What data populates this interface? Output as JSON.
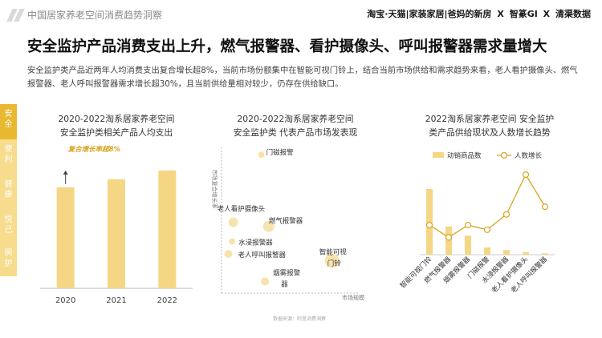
{
  "header": {
    "report_title": "中国居家养老空间消费趋势洞察",
    "brand_1": "淘宝·天猫",
    "brand_2": "家装家居",
    "brand_3": "爸妈的新房",
    "brand_4": "智篆GI",
    "brand_5": "清渠数据",
    "separator": "X"
  },
  "headline": "安全监护产品消费支出上升，燃气报警器、看护摄像头、呼叫报警器需求量增大",
  "intro": "安全监护类产品近两年人均消费支出复合增长超8%，当前市场份额集中在智能可视门铃上，结合当前市场供给和需求趋势来看，老人看护摄像头、燃气报警器、老人呼叫报警器需求增长超30%，且当前供给量相对较少，仍存在供给缺口。",
  "sidebar": {
    "items": [
      "安全",
      "便利",
      "健康",
      "悦己",
      "照护"
    ]
  },
  "colors": {
    "gold": "#f5d684",
    "gold_dark": "#d9a520",
    "sidebar_bg": "#f6dc8c",
    "sidebar_active": "#e8b830",
    "bubble": "#f7e3ad"
  },
  "panel1": {
    "title_line1": "2020-2022淘系居家养老空间",
    "title_line2": "安全监护类相关产品人均支出"
  },
  "panel2": {
    "title_line1": "2020-2022淘系居家养老空间",
    "title_line2": "安全监护类 代表产品市场发表现"
  },
  "panel3": {
    "title_line1": "2022淘系居家养老空间 安全监护",
    "title_line2": "类产品供给现状及人数增长趋势"
  },
  "source": "数据来源：阿里消费洞察",
  "chart_data": [
    {
      "type": "bar",
      "categories": [
        "2020",
        "2021",
        "2022"
      ],
      "values": [
        100,
        108,
        116.6
      ],
      "ylim": [
        0,
        130
      ],
      "annotation": "复合增长率超8%",
      "grid": false,
      "note": "relative values (no value axis printed)"
    },
    {
      "type": "scatter",
      "xlabel": "市场规模",
      "ylabel": "市场复合增长率",
      "xlim": [
        0,
        100
      ],
      "ylim": [
        0,
        100
      ],
      "points": [
        {
          "label": "门磁报警",
          "x": 30,
          "y": 97,
          "size": 4
        },
        {
          "label": "老人看护摄像头",
          "x": 7,
          "y": 48,
          "size": 6
        },
        {
          "label": "燃气报警器",
          "x": 36,
          "y": 45,
          "size": 7
        },
        {
          "label": "水浸报警器",
          "x": 6,
          "y": 34,
          "size": 4
        },
        {
          "label": "老人呼叫报警器",
          "x": 3,
          "y": 25,
          "size": 5
        },
        {
          "label": "智能可视门铃",
          "x": 88,
          "y": 20,
          "size": 9
        },
        {
          "label": "烟雾报警器",
          "x": 33,
          "y": 5,
          "size": 5
        }
      ]
    },
    {
      "type": "bar+line",
      "categories": [
        "智能可视门铃",
        "燃气报警器",
        "烟雾报警器",
        "门磁报警",
        "水浸报警器",
        "老人看护摄像头",
        "老人呼叫报警器"
      ],
      "series": [
        {
          "name": "动销商品数",
          "type": "bar",
          "values": [
            100,
            43,
            29,
            11,
            7,
            4,
            2
          ]
        },
        {
          "name": "人数增长",
          "type": "line",
          "values": [
            12,
            4,
            12,
            9,
            19,
            45,
            24
          ]
        }
      ],
      "legend": "top",
      "grid": false
    }
  ]
}
